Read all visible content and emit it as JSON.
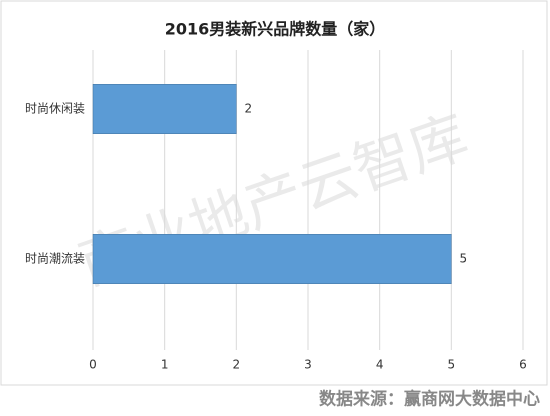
{
  "chart_data": {
    "type": "bar",
    "orientation": "horizontal",
    "title": "2016男装新兴品牌数量（家）",
    "categories": [
      "时尚休闲装",
      "时尚潮流装"
    ],
    "values": [
      2,
      5
    ],
    "color": "#5b9bd5",
    "xlim": [
      0,
      6
    ],
    "xticks": [
      0,
      1,
      2,
      3,
      4,
      5,
      6
    ],
    "grid": true,
    "watermark": "商业地产云智库",
    "source": "数据来源：赢商网大数据中心"
  }
}
